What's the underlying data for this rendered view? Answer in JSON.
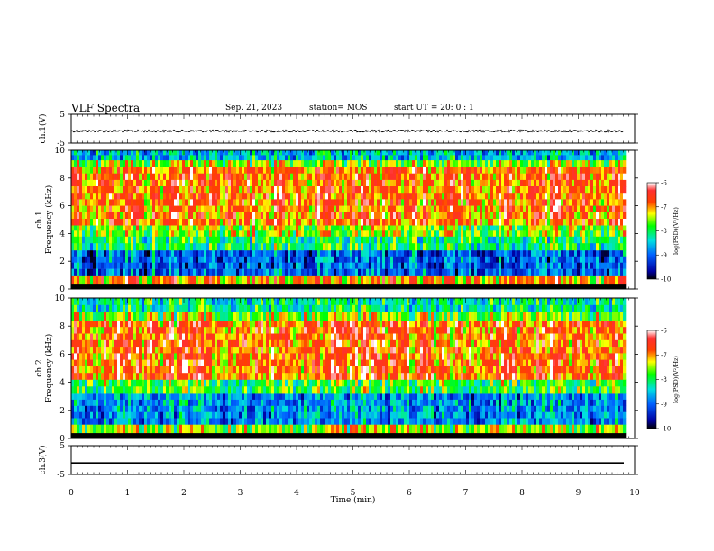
{
  "header": {
    "title": "VLF Spectra",
    "date": "Sep. 21, 2023",
    "station": "station= MOS",
    "start": "start  UT =   20: 0  : 1"
  },
  "colors": {
    "spectrum_low": "#000080",
    "spectrum_mid_low": "#00c0ff",
    "spectrum_mid": "#00ff00",
    "spectrum_mid_high": "#ffff00",
    "spectrum_high": "#ff0000",
    "spectrum_top": "#ffffff"
  },
  "chart_data": [
    {
      "type": "line",
      "panel": "ch1-waveform",
      "ylabel": "ch.1(V)",
      "ylim": [
        -5,
        5
      ],
      "yticks": [
        "5",
        "-5"
      ],
      "series": [
        {
          "x": [
            0,
            9.82
          ],
          "values": [
            -0.8,
            -0.8
          ]
        }
      ]
    },
    {
      "type": "heatmap",
      "panel": "ch1-spectrogram",
      "ylabel_top": "ch.1",
      "ylabel": "Frequency (kHz)",
      "ylim": [
        0,
        10
      ],
      "yticks": [
        "0",
        "2",
        "4",
        "6",
        "8",
        "10"
      ],
      "xlim": [
        0,
        10
      ],
      "data_end_min": 9.82,
      "bands_khz": [
        {
          "from": 0.0,
          "to": 0.4,
          "log_psd": -10
        },
        {
          "from": 0.4,
          "to": 1.0,
          "log_psd": -7
        },
        {
          "from": 1.0,
          "to": 2.8,
          "log_psd": -9
        },
        {
          "from": 2.8,
          "to": 3.8,
          "log_psd": -8
        },
        {
          "from": 3.8,
          "to": 4.6,
          "log_psd": -7.5
        },
        {
          "from": 4.6,
          "to": 8.8,
          "log_psd": -6.8
        },
        {
          "from": 8.8,
          "to": 9.3,
          "log_psd": -7.5
        },
        {
          "from": 9.3,
          "to": 10.0,
          "log_psd": -8.5
        }
      ],
      "colorbar": {
        "label": "log(PSD)(V²/Hz)",
        "range": [
          -10,
          -6
        ],
        "ticks": [
          "-6",
          "-7",
          "-8",
          "-9",
          "-10"
        ]
      }
    },
    {
      "type": "heatmap",
      "panel": "ch2-spectrogram",
      "ylabel_top": "ch.2",
      "ylabel": "Frequency (kHz)",
      "ylim": [
        0,
        10
      ],
      "yticks": [
        "0",
        "2",
        "4",
        "6",
        "8",
        "10"
      ],
      "xlim": [
        0,
        10
      ],
      "data_end_min": 9.82,
      "bands_khz": [
        {
          "from": 0.0,
          "to": 0.4,
          "log_psd": -10
        },
        {
          "from": 0.4,
          "to": 1.0,
          "log_psd": -7.5
        },
        {
          "from": 1.0,
          "to": 3.2,
          "log_psd": -8.8
        },
        {
          "from": 3.2,
          "to": 4.2,
          "log_psd": -7.8
        },
        {
          "from": 4.2,
          "to": 8.4,
          "log_psd": -6.8
        },
        {
          "from": 8.4,
          "to": 9.0,
          "log_psd": -7.5
        },
        {
          "from": 9.0,
          "to": 10.0,
          "log_psd": -8.2
        }
      ],
      "colorbar": {
        "label": "log(PSD)(V²/Hz)",
        "range": [
          -10,
          -6
        ],
        "ticks": [
          "-6",
          "-7",
          "-8",
          "-9",
          "-10"
        ]
      }
    },
    {
      "type": "line",
      "panel": "ch3-waveform",
      "ylabel": "ch.3(V)",
      "ylim": [
        -5,
        5
      ],
      "yticks": [
        "5",
        "-5"
      ],
      "xlabel": "Time (min)",
      "xlim": [
        0,
        10
      ],
      "xticks": [
        "0",
        "1",
        "2",
        "3",
        "4",
        "5",
        "6",
        "7",
        "8",
        "9",
        "10"
      ],
      "series": [
        {
          "x": [
            0,
            9.82
          ],
          "values": [
            -1,
            -1
          ]
        }
      ]
    }
  ]
}
